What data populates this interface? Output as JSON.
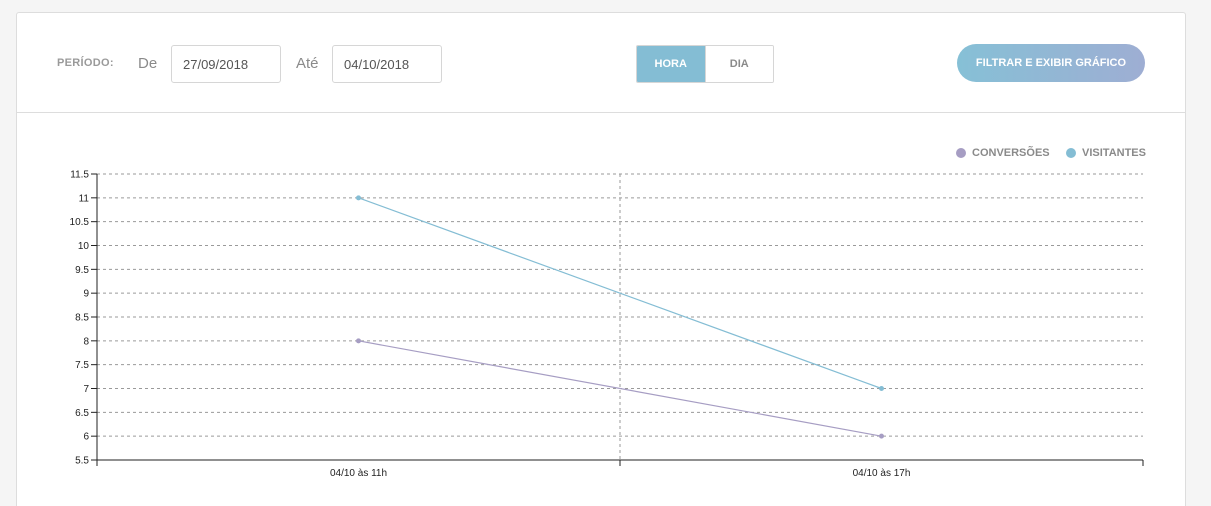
{
  "filter": {
    "period_label": "PERÍODO:",
    "from_label": "De",
    "from_value": "27/09/2018",
    "to_label": "Até",
    "to_value": "04/10/2018",
    "granularity_options": [
      "HORA",
      "DIA"
    ],
    "selected_granularity": "HORA",
    "submit_label": "FILTRAR E EXIBIR GRÁFICO"
  },
  "colors": {
    "conversions": "#a69dc3",
    "visitors": "#84bdd4",
    "accent": "#84bdd4"
  },
  "chart_data": {
    "type": "line",
    "categories": [
      "04/10 às 11h",
      "04/10 às 17h"
    ],
    "series": [
      {
        "name": "CONVERSÕES",
        "values": [
          8,
          6
        ],
        "color": "#a69dc3"
      },
      {
        "name": "VISITANTES",
        "values": [
          11,
          7
        ],
        "color": "#84bdd4"
      }
    ],
    "ylim": [
      5.5,
      11.5
    ],
    "yticks": [
      "5.5",
      "6",
      "6.5",
      "7",
      "7.5",
      "8",
      "8.5",
      "9",
      "9.5",
      "10",
      "10.5",
      "11",
      "11.5"
    ],
    "grid": true,
    "legend_position": "top-right"
  }
}
